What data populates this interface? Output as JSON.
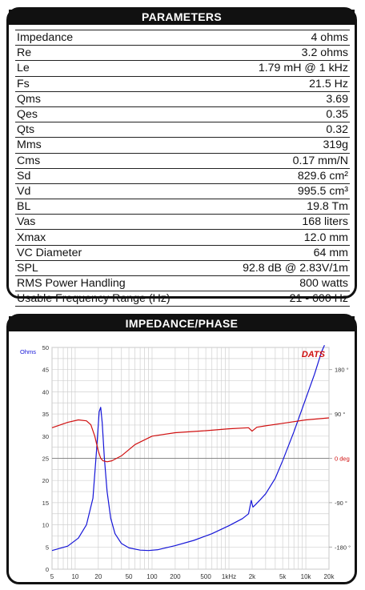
{
  "parameters": {
    "title": "PARAMETERS",
    "rows": [
      {
        "label": "Impedance",
        "value": "4 ohms"
      },
      {
        "label": "Re",
        "value": "3.2 ohms"
      },
      {
        "label": "Le",
        "value": "1.79 mH @ 1 kHz"
      },
      {
        "label": "Fs",
        "value": "21.5 Hz"
      },
      {
        "label": "Qms",
        "value": "3.69"
      },
      {
        "label": "Qes",
        "value": "0.35"
      },
      {
        "label": "Qts",
        "value": "0.32"
      },
      {
        "label": "Mms",
        "value": "319g"
      },
      {
        "label": "Cms",
        "value": "0.17 mm/N"
      },
      {
        "label": "Sd",
        "value": "829.6 cm²"
      },
      {
        "label": "Vd",
        "value": "995.5 cm³"
      },
      {
        "label": "BL",
        "value": "19.8 Tm"
      },
      {
        "label": "Vas",
        "value": "168 liters"
      },
      {
        "label": "Xmax",
        "value": "12.0 mm"
      },
      {
        "label": "VC Diameter",
        "value": "64 mm"
      },
      {
        "label": "SPL",
        "value": "92.8 dB @ 2.83V/1m"
      },
      {
        "label": "RMS Power Handling",
        "value": "800 watts"
      },
      {
        "label": "Usable Frequency Range (Hz)",
        "value": "21 - 600 Hz"
      }
    ]
  },
  "impedance_panel": {
    "title": "IMPEDANCE/PHASE",
    "brand": "DATS",
    "left_unit": "Ohms",
    "right_unit": "deg",
    "colors": {
      "impedance": "#1515d8",
      "phase": "#d01010",
      "grid": "#d0d0d0",
      "midline": "#888888"
    }
  },
  "chart_data": {
    "type": "line",
    "x_scale": "log",
    "xlim": [
      5,
      20000
    ],
    "ylim": [
      0,
      50
    ],
    "phase_lim": [
      -225,
      225
    ],
    "grid": true,
    "x_ticks": [
      "5",
      "10",
      "20",
      "50",
      "100",
      "200",
      "500",
      "1kHz",
      "2k",
      "5k",
      "10k",
      "20k"
    ],
    "x_tick_values": [
      5,
      10,
      20,
      50,
      100,
      200,
      500,
      1000,
      2000,
      5000,
      10000,
      20000
    ],
    "y_ticks": [
      0,
      5,
      10,
      15,
      20,
      25,
      30,
      35,
      40,
      45,
      50
    ],
    "phase_ticks": [
      {
        "value": 180,
        "label": "180 °"
      },
      {
        "value": 90,
        "label": "90 °"
      },
      {
        "value": 0,
        "label": "0 deg"
      },
      {
        "value": -90,
        "label": "-90 °"
      },
      {
        "value": -180,
        "label": "-180 °"
      }
    ],
    "series": [
      {
        "axis": "left",
        "color": "#1515d8",
        "points": [
          [
            5,
            4.2
          ],
          [
            8,
            5.2
          ],
          [
            11,
            7.0
          ],
          [
            14,
            10.0
          ],
          [
            17,
            16.0
          ],
          [
            19,
            27.0
          ],
          [
            20.5,
            35.5
          ],
          [
            21.5,
            36.5
          ],
          [
            22.5,
            33.0
          ],
          [
            24,
            25.0
          ],
          [
            26,
            17.5
          ],
          [
            29,
            11.5
          ],
          [
            33,
            8.0
          ],
          [
            40,
            5.8
          ],
          [
            50,
            4.8
          ],
          [
            70,
            4.3
          ],
          [
            90,
            4.2
          ],
          [
            120,
            4.4
          ],
          [
            200,
            5.3
          ],
          [
            350,
            6.5
          ],
          [
            600,
            8.0
          ],
          [
            1000,
            9.8
          ],
          [
            1500,
            11.4
          ],
          [
            1800,
            12.5
          ],
          [
            1950,
            15.5
          ],
          [
            2050,
            14.0
          ],
          [
            2200,
            14.5
          ],
          [
            2500,
            15.5
          ],
          [
            3000,
            17.0
          ],
          [
            4000,
            20.5
          ],
          [
            5000,
            24.5
          ],
          [
            7000,
            31.0
          ],
          [
            10000,
            38.5
          ],
          [
            13000,
            44.0
          ],
          [
            16000,
            49.0
          ],
          [
            17500,
            50.5
          ]
        ]
      },
      {
        "axis": "right",
        "color": "#d01010",
        "points": [
          [
            5,
            62
          ],
          [
            8,
            73
          ],
          [
            11,
            78
          ],
          [
            14,
            76
          ],
          [
            16,
            68
          ],
          [
            18,
            45
          ],
          [
            20,
            15
          ],
          [
            21.5,
            0
          ],
          [
            23,
            -5
          ],
          [
            26,
            -7
          ],
          [
            30,
            -5
          ],
          [
            40,
            5
          ],
          [
            60,
            28
          ],
          [
            100,
            45
          ],
          [
            200,
            52
          ],
          [
            500,
            56
          ],
          [
            1000,
            60
          ],
          [
            1800,
            62
          ],
          [
            2000,
            55
          ],
          [
            2300,
            63
          ],
          [
            3000,
            66
          ],
          [
            5000,
            71
          ],
          [
            10000,
            78
          ],
          [
            20000,
            82
          ]
        ]
      }
    ]
  }
}
